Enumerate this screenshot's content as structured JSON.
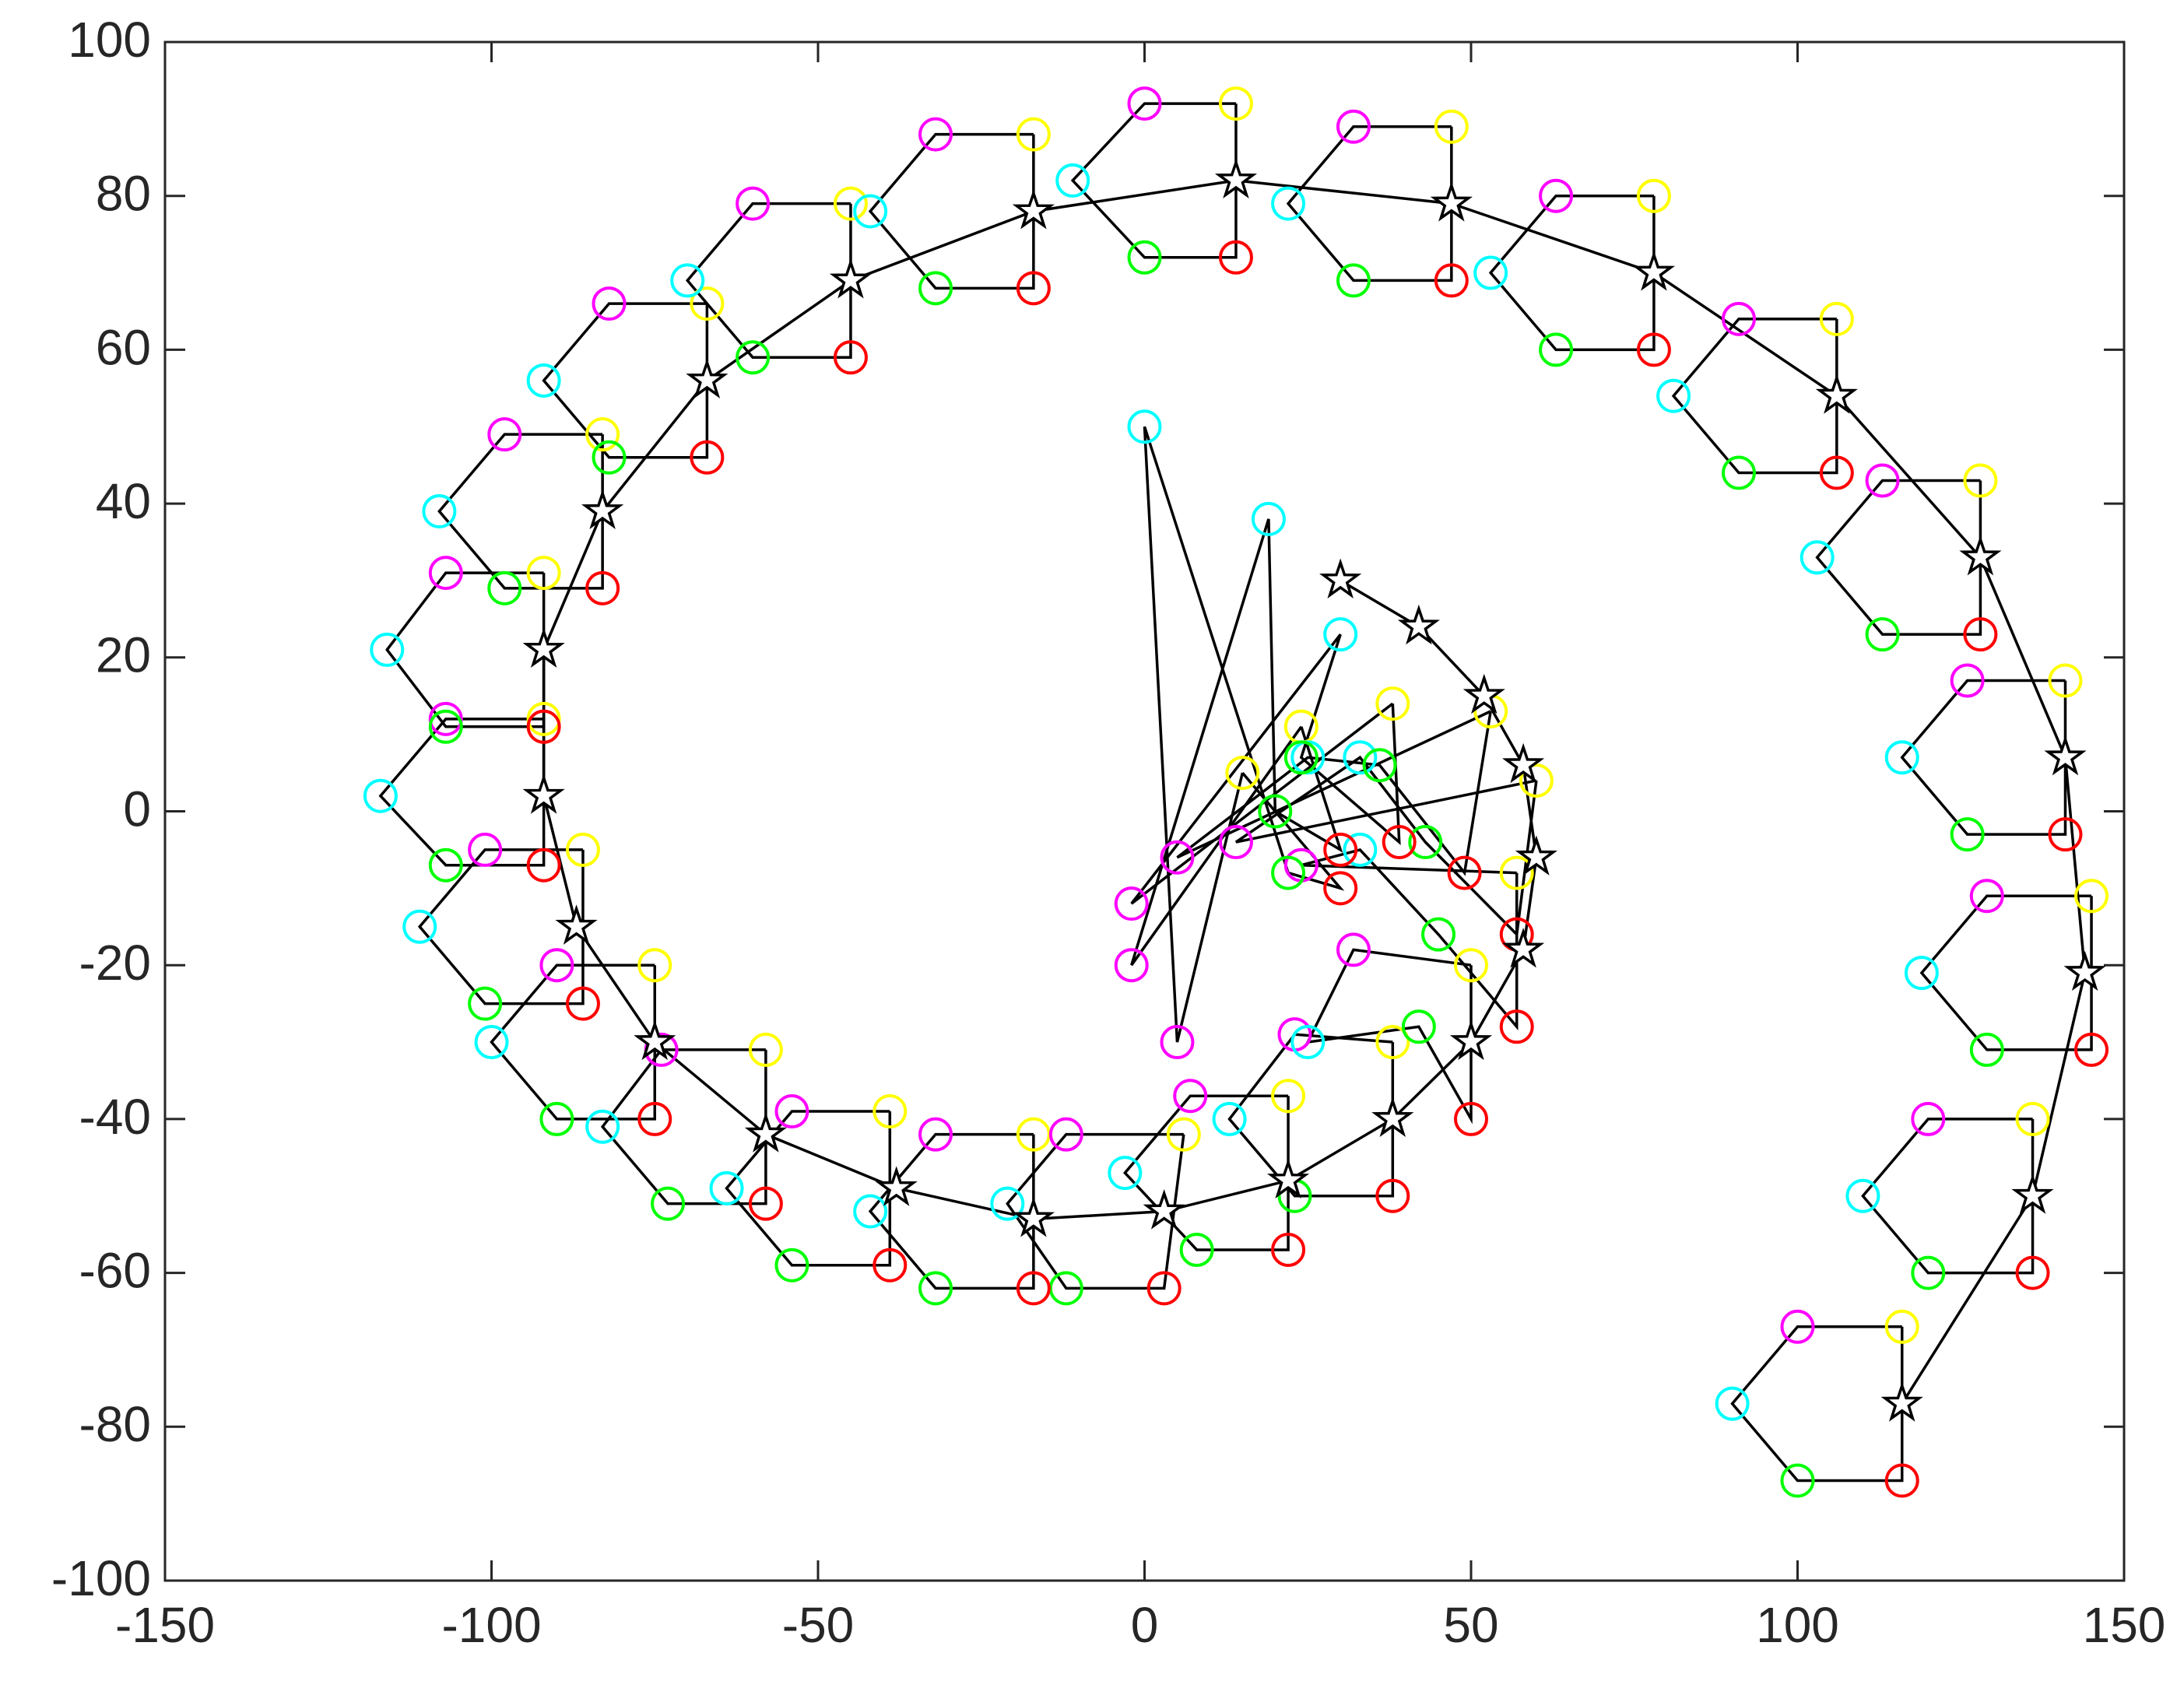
{
  "chart_data": {
    "type": "scatter",
    "xlim": [
      -150,
      150
    ],
    "ylim": [
      -100,
      100
    ],
    "xticks": [
      -150,
      -100,
      -50,
      0,
      50,
      100,
      150
    ],
    "yticks": [
      -100,
      -80,
      -60,
      -40,
      -20,
      0,
      20,
      40,
      60,
      80,
      100
    ],
    "box": true,
    "series": [
      {
        "color": "#ffff00",
        "marker": "circle",
        "x": [
          15,
          24,
          38,
          53,
          60,
          57,
          50,
          38,
          22,
          6,
          -17,
          -39,
          -58,
          -75,
          -86,
          -92,
          -92,
          -83,
          -67,
          -45,
          -17,
          14,
          47,
          78,
          106,
          128,
          141,
          145,
          136,
          116
        ],
        "y": [
          5,
          11,
          14,
          13,
          4,
          -8,
          -20,
          -30,
          -37,
          -42,
          -42,
          -39,
          -31,
          -20,
          -5,
          12,
          31,
          49,
          66,
          79,
          88,
          92,
          89,
          80,
          64,
          43,
          17,
          -11,
          -40,
          -67
        ]
      },
      {
        "color": "#ff00ff",
        "marker": "circle",
        "x": [
          5,
          -2,
          -2,
          5,
          14,
          24,
          32,
          23,
          7,
          -12,
          -32,
          -54,
          -74,
          -90,
          -101,
          -107,
          -107,
          -98,
          -82,
          -60,
          -32,
          0,
          32,
          63,
          91,
          113,
          126,
          129,
          120,
          100
        ],
        "y": [
          -30,
          -20,
          -12,
          -6,
          -4,
          -7,
          -18,
          -29,
          -37,
          -42,
          -42,
          -39,
          -31,
          -20,
          -5,
          12,
          31,
          49,
          66,
          79,
          88,
          92,
          89,
          80,
          64,
          43,
          17,
          -11,
          -40,
          -67
        ]
      },
      {
        "color": "#00ffff",
        "marker": "circle",
        "x": [
          0,
          19,
          30,
          25,
          33,
          33,
          25,
          13,
          -3,
          -21,
          -42,
          -64,
          -83,
          -100,
          -111,
          -117,
          -116,
          -108,
          -92,
          -70,
          -42,
          -11,
          22,
          53,
          81,
          103,
          116,
          119,
          110,
          90
        ],
        "y": [
          50,
          38,
          23,
          7,
          7,
          -5,
          -30,
          -40,
          -47,
          -51,
          -52,
          -49,
          -41,
          -30,
          -15,
          2,
          21,
          39,
          56,
          69,
          78,
          82,
          79,
          70,
          54,
          33,
          7,
          -21,
          -50,
          -77
        ]
      },
      {
        "color": "#00ff00",
        "marker": "circle",
        "x": [
          22,
          20,
          24,
          36,
          43,
          45,
          42,
          23,
          8,
          -12,
          -32,
          -54,
          -73,
          -90,
          -101,
          -107,
          -107,
          -98,
          -82,
          -60,
          -32,
          0,
          32,
          63,
          91,
          113,
          126,
          129,
          120,
          100
        ],
        "y": [
          -8,
          0,
          7,
          6,
          -4,
          -16,
          -28,
          -50,
          -57,
          -62,
          -62,
          -59,
          -51,
          -40,
          -25,
          -7,
          11,
          29,
          46,
          59,
          68,
          72,
          69,
          60,
          44,
          23,
          -3,
          -31,
          -60,
          -87
        ]
      },
      {
        "color": "#ff0000",
        "marker": "circle",
        "x": [
          30,
          30,
          39,
          49,
          57,
          57,
          50,
          38,
          22,
          3,
          -17,
          -39,
          -58,
          -75,
          -86,
          -92,
          -92,
          -83,
          -67,
          -45,
          -17,
          14,
          47,
          78,
          106,
          128,
          141,
          145,
          136,
          116
        ],
        "y": [
          -10,
          -5,
          -4,
          -8,
          -16,
          -28,
          -40,
          -50,
          -57,
          -62,
          -62,
          -59,
          -51,
          -40,
          -25,
          -7,
          11,
          29,
          46,
          59,
          68,
          72,
          69,
          60,
          44,
          23,
          -3,
          -31,
          -60,
          -87
        ]
      },
      {
        "color": "#000000",
        "marker": "star",
        "x": [
          30,
          42,
          52,
          58,
          60,
          58,
          50,
          38,
          22,
          3,
          -17,
          -38,
          -58,
          -75,
          -87,
          -92,
          -92,
          -83,
          -67,
          -45,
          -17,
          14,
          47,
          78,
          106,
          128,
          141,
          144,
          136,
          116
        ],
        "y": [
          30,
          24,
          15,
          6,
          -6,
          -18,
          -30,
          -40,
          -48,
          -52,
          -53,
          -49,
          -42,
          -30,
          -15,
          2,
          21,
          39,
          56,
          69,
          78,
          82,
          79,
          70,
          54,
          33,
          7,
          -21,
          -50,
          -77
        ]
      }
    ]
  }
}
